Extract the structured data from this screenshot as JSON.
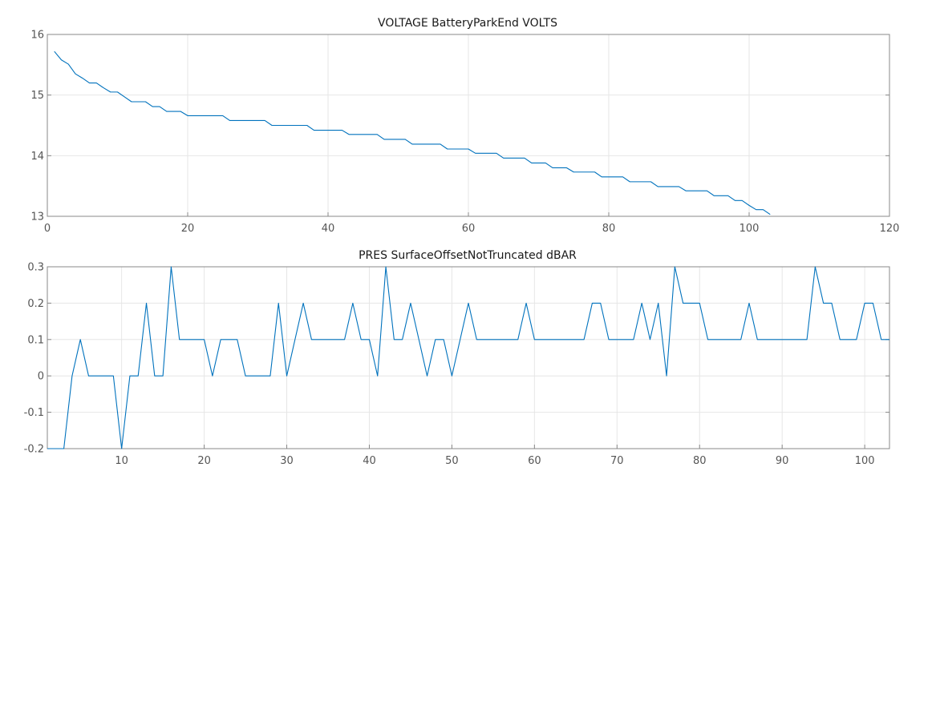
{
  "chart_data": [
    {
      "type": "line",
      "title": "VOLTAGE BatteryParkEnd VOLTS",
      "xlim": [
        0,
        120
      ],
      "ylim": [
        13,
        16
      ],
      "xticks": [
        0,
        20,
        40,
        60,
        80,
        100,
        120
      ],
      "yticks": [
        13,
        14,
        15,
        16
      ],
      "grid": true,
      "series": [
        {
          "color": "#0072bd",
          "x": [
            1,
            2,
            3,
            4,
            5,
            6,
            7,
            8,
            9,
            10,
            11,
            12,
            13,
            14,
            15,
            16,
            17,
            18,
            19,
            20,
            21,
            22,
            23,
            24,
            25,
            26,
            27,
            28,
            29,
            30,
            31,
            32,
            33,
            34,
            35,
            36,
            37,
            38,
            39,
            40,
            41,
            42,
            43,
            44,
            45,
            46,
            47,
            48,
            49,
            50,
            51,
            52,
            53,
            54,
            55,
            56,
            57,
            58,
            59,
            60,
            61,
            62,
            63,
            64,
            65,
            66,
            67,
            68,
            69,
            70,
            71,
            72,
            73,
            74,
            75,
            76,
            77,
            78,
            79,
            80,
            81,
            82,
            83,
            84,
            85,
            86,
            87,
            88,
            89,
            90,
            91,
            92,
            93,
            94,
            95,
            96,
            97,
            98,
            99,
            100,
            101,
            102,
            103
          ],
          "y": [
            15.72,
            15.58,
            15.51,
            15.35,
            15.28,
            15.2,
            15.2,
            15.12,
            15.05,
            15.05,
            14.97,
            14.89,
            14.89,
            14.89,
            14.81,
            14.81,
            14.73,
            14.73,
            14.73,
            14.66,
            14.66,
            14.66,
            14.66,
            14.66,
            14.66,
            14.58,
            14.58,
            14.58,
            14.58,
            14.58,
            14.58,
            14.5,
            14.5,
            14.5,
            14.5,
            14.5,
            14.5,
            14.42,
            14.42,
            14.42,
            14.42,
            14.42,
            14.35,
            14.35,
            14.35,
            14.35,
            14.35,
            14.27,
            14.27,
            14.27,
            14.27,
            14.19,
            14.19,
            14.19,
            14.19,
            14.19,
            14.11,
            14.11,
            14.11,
            14.11,
            14.04,
            14.04,
            14.04,
            14.04,
            13.96,
            13.96,
            13.96,
            13.96,
            13.88,
            13.88,
            13.88,
            13.8,
            13.8,
            13.8,
            13.73,
            13.73,
            13.73,
            13.73,
            13.65,
            13.65,
            13.65,
            13.65,
            13.57,
            13.57,
            13.57,
            13.57,
            13.49,
            13.49,
            13.49,
            13.49,
            13.42,
            13.42,
            13.42,
            13.42,
            13.34,
            13.34,
            13.34,
            13.26,
            13.26,
            13.18,
            13.11,
            13.11,
            13.03
          ]
        }
      ]
    },
    {
      "type": "line",
      "title": "PRES SurfaceOffsetNotTruncated dBAR",
      "xlim": [
        1,
        103
      ],
      "ylim": [
        -0.2,
        0.3
      ],
      "xticks": [
        10,
        20,
        30,
        40,
        50,
        60,
        70,
        80,
        90,
        100
      ],
      "yticks": [
        -0.2,
        -0.1,
        0,
        0.1,
        0.2,
        0.3
      ],
      "grid": true,
      "series": [
        {
          "color": "#0072bd",
          "x": [
            1,
            2,
            3,
            4,
            5,
            6,
            7,
            8,
            9,
            10,
            11,
            12,
            13,
            14,
            15,
            16,
            17,
            18,
            19,
            20,
            21,
            22,
            23,
            24,
            25,
            26,
            27,
            28,
            29,
            30,
            31,
            32,
            33,
            34,
            35,
            36,
            37,
            38,
            39,
            40,
            41,
            42,
            43,
            44,
            45,
            46,
            47,
            48,
            49,
            50,
            51,
            52,
            53,
            54,
            55,
            56,
            57,
            58,
            59,
            60,
            61,
            62,
            63,
            64,
            65,
            66,
            67,
            68,
            69,
            70,
            71,
            72,
            73,
            74,
            75,
            76,
            77,
            78,
            79,
            80,
            81,
            82,
            83,
            84,
            85,
            86,
            87,
            88,
            89,
            90,
            91,
            92,
            93,
            94,
            95,
            96,
            97,
            98,
            99,
            100,
            101,
            102,
            103
          ],
          "y": [
            -0.2,
            -0.2,
            -0.2,
            0,
            0.1,
            0,
            0,
            0,
            0,
            -0.2,
            0,
            0,
            0.2,
            0,
            0,
            0.3,
            0.1,
            0.1,
            0.1,
            0.1,
            0,
            0.1,
            0.1,
            0.1,
            0,
            0,
            0,
            0,
            0.2,
            0,
            0.1,
            0.2,
            0.1,
            0.1,
            0.1,
            0.1,
            0.1,
            0.2,
            0.1,
            0.1,
            0,
            0.3,
            0.1,
            0.1,
            0.2,
            0.1,
            0,
            0.1,
            0.1,
            0,
            0.1,
            0.2,
            0.1,
            0.1,
            0.1,
            0.1,
            0.1,
            0.1,
            0.2,
            0.1,
            0.1,
            0.1,
            0.1,
            0.1,
            0.1,
            0.1,
            0.2,
            0.2,
            0.1,
            0.1,
            0.1,
            0.1,
            0.2,
            0.1,
            0.2,
            0,
            0.3,
            0.2,
            0.2,
            0.2,
            0.1,
            0.1,
            0.1,
            0.1,
            0.1,
            0.2,
            0.1,
            0.1,
            0.1,
            0.1,
            0.1,
            0.1,
            0.1,
            0.3,
            0.2,
            0.2,
            0.1,
            0.1,
            0.1,
            0.2,
            0.2,
            0.1,
            0.1
          ]
        }
      ]
    }
  ]
}
